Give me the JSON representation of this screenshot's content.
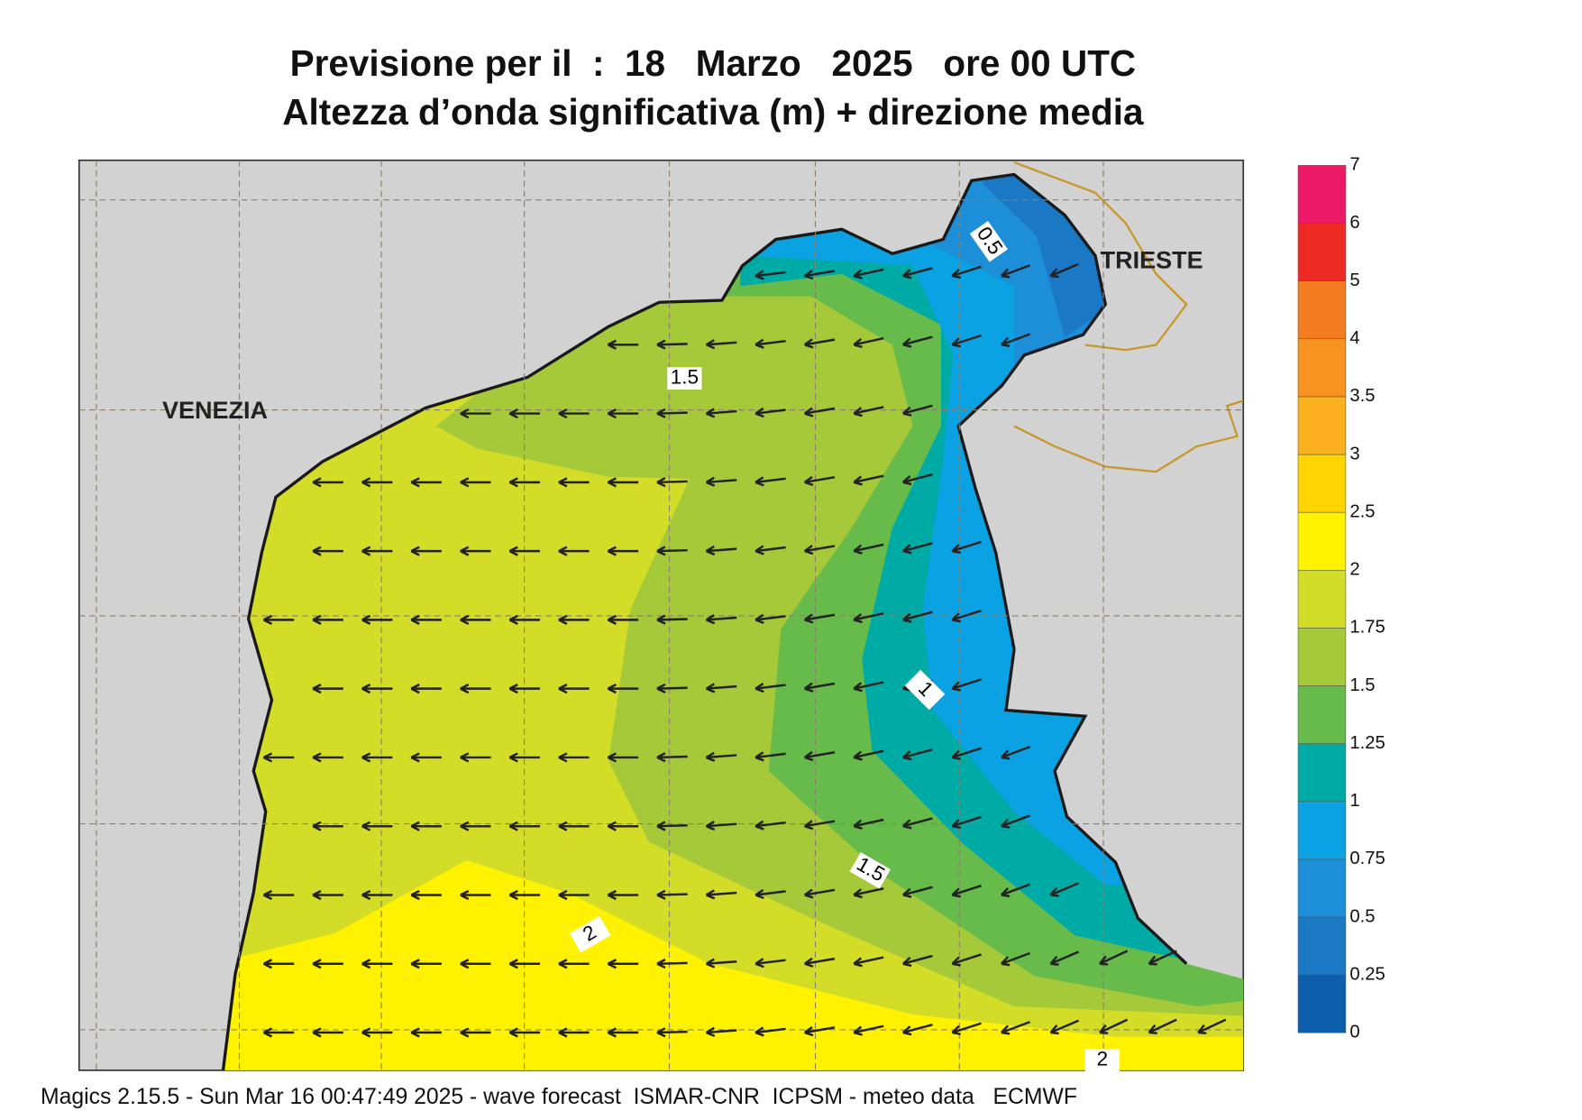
{
  "title": [
    "Previsione per il  :  18   Marzo   2025   ore 00 UTC",
    "Altezza d’onda significativa (m) + direzione media"
  ],
  "map": {
    "places": [
      "VENEZIA",
      "TRIESTE"
    ],
    "contour_labels": [
      "0.5",
      "1.5",
      "1",
      "1.5",
      "2",
      "2"
    ]
  },
  "colorbar": {
    "levels": [
      0,
      0.25,
      0.5,
      0.75,
      1,
      1.25,
      1.5,
      1.75,
      2,
      2.5,
      3,
      3.5,
      4,
      5,
      6,
      7
    ],
    "colors": [
      "#0d5fae",
      "#1a78c4",
      "#1d8ed8",
      "#0aa2e2",
      "#00aaa5",
      "#66bb4a",
      "#a6c93a",
      "#d3dd28",
      "#fff200",
      "#ffd400",
      "#fbb11d",
      "#f7931e",
      "#f47c20",
      "#ee2a25",
      "#ec1a66"
    ]
  },
  "footer": "Magics 2.15.5 - Sun Mar 16 00:47:49 2025 - wave forecast  ISMAR-CNR  ICPSM - meteo data   ECMWF"
}
